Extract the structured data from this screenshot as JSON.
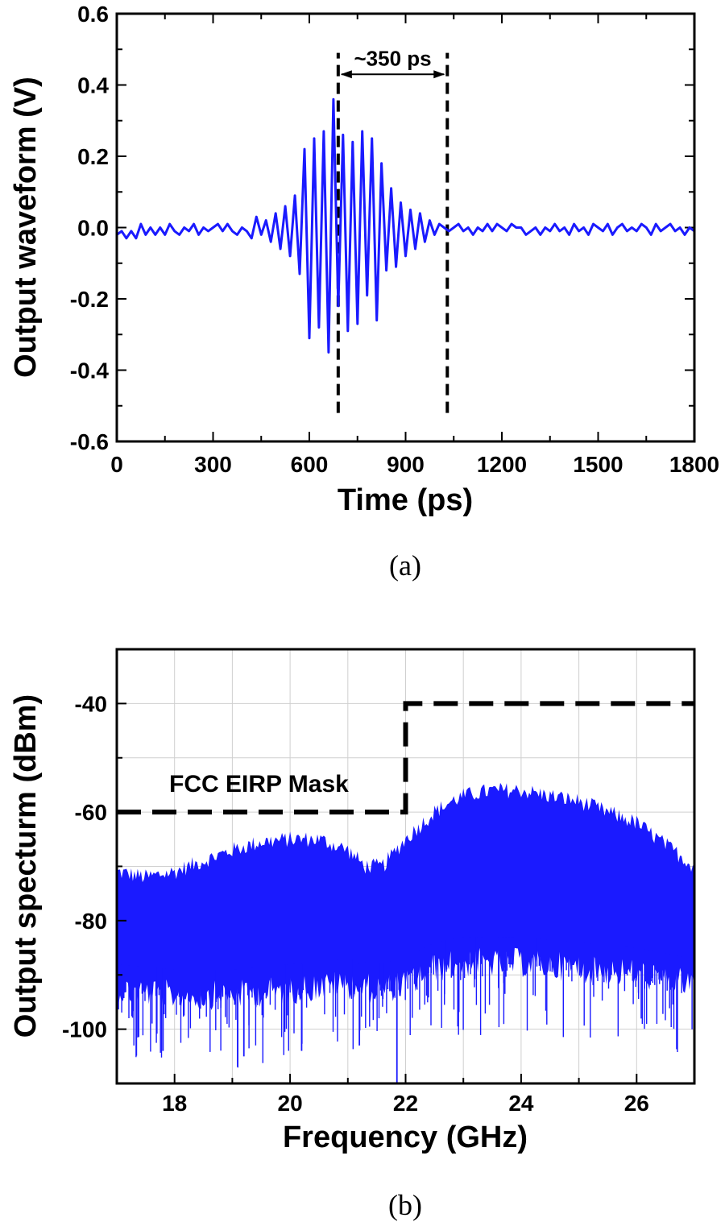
{
  "chart_data": [
    {
      "type": "line",
      "panel_label": "(a)",
      "xlabel": "Time (ps)",
      "ylabel": "Output waveform (V)",
      "xlim": [
        0,
        1800
      ],
      "ylim": [
        -0.6,
        0.6
      ],
      "xticks": [
        0,
        300,
        600,
        900,
        1200,
        1500,
        1800
      ],
      "yticks": [
        0.6,
        0.4,
        0.2,
        0.0,
        -0.2,
        -0.4,
        -0.6
      ],
      "xtick_labels": [
        "0",
        "300",
        "600",
        "900",
        "1200",
        "1500",
        "1800"
      ],
      "ytick_labels": [
        "0.6",
        "0.4",
        "0.2",
        "0.0",
        "-0.2",
        "-0.4",
        "-0.6"
      ],
      "series_color": "#1a1aff",
      "x": [
        0,
        15,
        30,
        45,
        60,
        75,
        90,
        105,
        120,
        135,
        150,
        165,
        180,
        195,
        210,
        225,
        240,
        255,
        270,
        285,
        300,
        315,
        330,
        345,
        360,
        375,
        390,
        405,
        420,
        435,
        450,
        465,
        480,
        495,
        510,
        525,
        540,
        555,
        570,
        585,
        600,
        615,
        630,
        645,
        660,
        675,
        690,
        705,
        720,
        735,
        750,
        765,
        780,
        795,
        810,
        825,
        840,
        855,
        870,
        885,
        900,
        915,
        930,
        945,
        960,
        975,
        990,
        1005,
        1020,
        1035,
        1050,
        1065,
        1080,
        1095,
        1110,
        1125,
        1140,
        1155,
        1170,
        1185,
        1200,
        1215,
        1230,
        1245,
        1260,
        1275,
        1290,
        1305,
        1320,
        1335,
        1350,
        1365,
        1380,
        1395,
        1410,
        1425,
        1440,
        1455,
        1470,
        1485,
        1500,
        1515,
        1530,
        1545,
        1560,
        1575,
        1590,
        1605,
        1620,
        1635,
        1650,
        1665,
        1680,
        1695,
        1710,
        1725,
        1740,
        1755,
        1770,
        1785,
        1800
      ],
      "y": [
        -0.02,
        -0.01,
        -0.03,
        -0.01,
        -0.03,
        0.01,
        -0.02,
        0.0,
        -0.02,
        0.0,
        -0.02,
        0.01,
        -0.01,
        -0.02,
        0.0,
        -0.01,
        0.01,
        -0.02,
        0.0,
        -0.01,
        0.0,
        0.01,
        -0.01,
        0.01,
        -0.01,
        -0.02,
        0.0,
        -0.01,
        -0.03,
        0.03,
        -0.02,
        0.02,
        -0.04,
        0.04,
        -0.06,
        0.06,
        -0.08,
        0.09,
        -0.13,
        0.22,
        -0.31,
        0.25,
        -0.28,
        0.27,
        -0.35,
        0.36,
        -0.22,
        0.26,
        -0.29,
        0.24,
        -0.27,
        0.27,
        -0.19,
        0.25,
        -0.26,
        0.18,
        -0.12,
        0.11,
        -0.11,
        0.07,
        -0.08,
        0.05,
        -0.06,
        0.04,
        -0.04,
        0.02,
        -0.02,
        0.01,
        0.0,
        -0.01,
        0.0,
        0.01,
        -0.01,
        0.0,
        -0.02,
        0.0,
        -0.01,
        0.01,
        -0.01,
        0.01,
        0.0,
        -0.01,
        0.01,
        0.0,
        0.0,
        -0.02,
        -0.01,
        0.0,
        -0.02,
        0.0,
        -0.01,
        0.01,
        -0.01,
        0.0,
        -0.02,
        0.01,
        -0.01,
        0.0,
        -0.02,
        0.01,
        0.0,
        -0.01,
        0.01,
        -0.02,
        0.0,
        0.01,
        -0.01,
        0.0,
        -0.01,
        0.01,
        0.0,
        -0.02,
        0.01,
        -0.01,
        0.0,
        0.01,
        -0.01,
        0.0,
        -0.02,
        0.0,
        -0.01
      ],
      "annotation": {
        "text": "~350 ps",
        "x_start": 690,
        "x_end": 1030,
        "line_bottom": -0.52,
        "line_top": 0.49,
        "arrow_y": 0.43
      }
    },
    {
      "type": "area",
      "panel_label": "(b)",
      "xlabel": "Frequency (GHz)",
      "ylabel": "Output specturm (dBm)",
      "xlim": [
        17,
        27
      ],
      "ylim": [
        -110,
        -30
      ],
      "xticks": [
        18,
        20,
        22,
        24,
        26
      ],
      "yticks": [
        -40,
        -60,
        -80,
        -100
      ],
      "xtick_labels": [
        "18",
        "20",
        "22",
        "24",
        "26"
      ],
      "ytick_labels": [
        "-40",
        "-60",
        "-80",
        "-100"
      ],
      "grid": true,
      "series_color": "#1a1aff",
      "envelope_upper": {
        "x": [
          17,
          17.5,
          18,
          18.5,
          19,
          19.5,
          20,
          20.5,
          21,
          21.3,
          21.6,
          22,
          22.2,
          22.5,
          22.8,
          23,
          23.5,
          24,
          24.5,
          25,
          25.5,
          26,
          26.5,
          27
        ],
        "y": [
          -71,
          -72,
          -71,
          -69,
          -67,
          -65.5,
          -65,
          -65,
          -67,
          -70,
          -70,
          -65,
          -63,
          -60,
          -58,
          -57,
          -56,
          -56,
          -57,
          -58,
          -60,
          -62,
          -66,
          -70
        ]
      },
      "envelope_lower": {
        "x": [
          17,
          18,
          19,
          20,
          21,
          21.5,
          22,
          22.5,
          23,
          24,
          25,
          26,
          27
        ],
        "y": [
          -90,
          -91,
          -91,
          -90,
          -89,
          -90,
          -89,
          -86,
          -85,
          -85,
          -86,
          -87,
          -89
        ]
      },
      "mask": {
        "label": "FCC EIRP Mask",
        "x": [
          17,
          22,
          22,
          27
        ],
        "y": [
          -60,
          -60,
          -40,
          -40
        ]
      }
    }
  ]
}
